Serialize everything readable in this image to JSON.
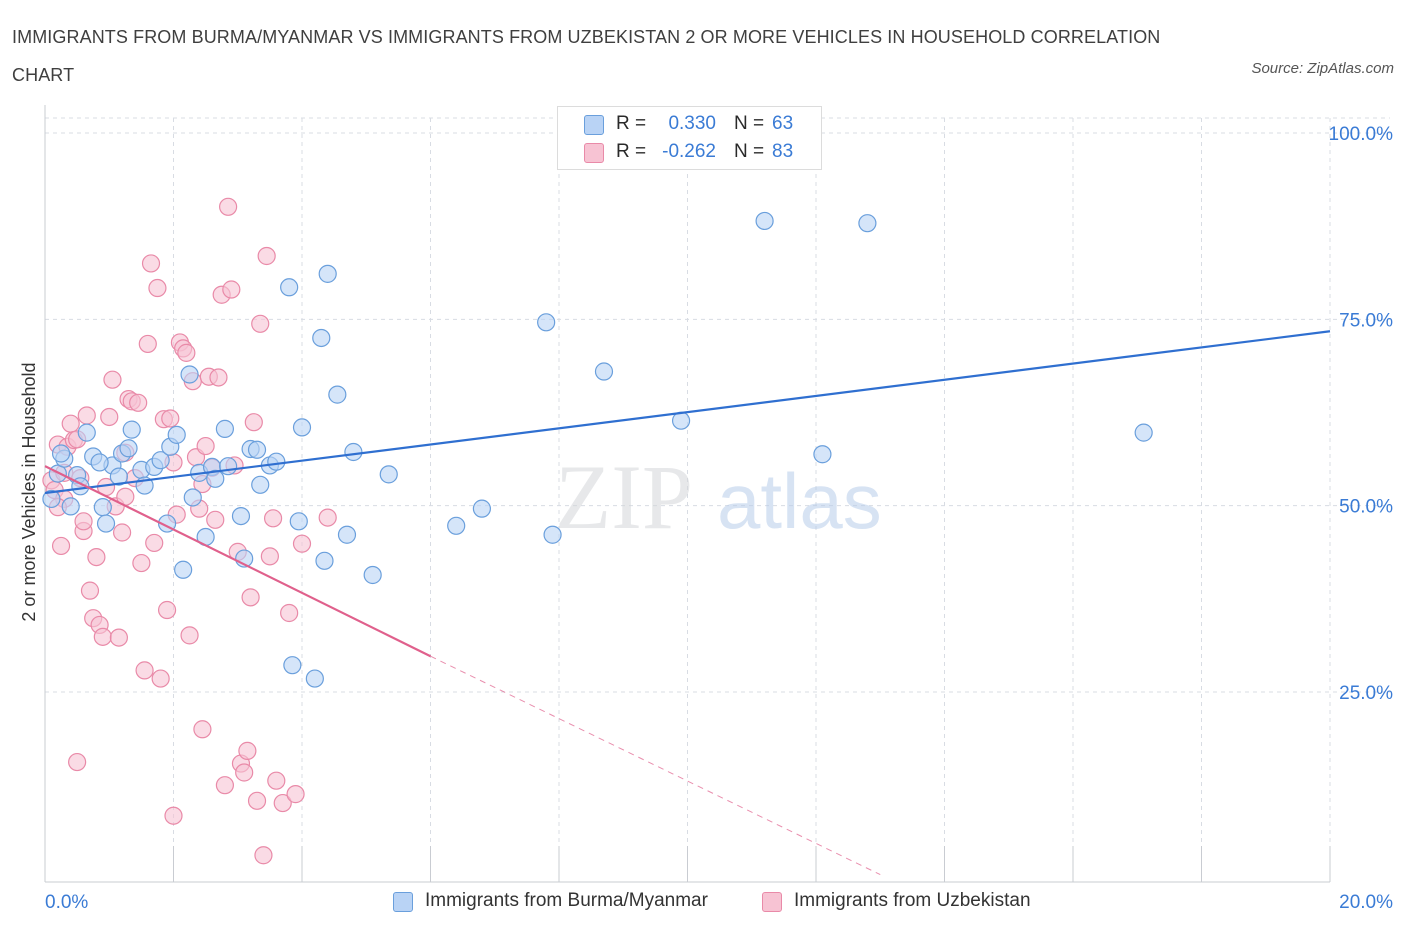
{
  "title": "IMMIGRANTS FROM BURMA/MYANMAR VS IMMIGRANTS FROM UZBEKISTAN 2 OR MORE VEHICLES IN HOUSEHOLD CORRELATION CHART",
  "source": "Source: ZipAtlas.com",
  "watermark": {
    "zip": "ZIP",
    "atlas": "atlas"
  },
  "legend": {
    "burma": {
      "r_label": "R =",
      "r_value": "0.330",
      "n_label": "N =",
      "n_value": "63"
    },
    "uzbek": {
      "r_label": "R =",
      "r_value": "-0.262",
      "n_label": "N =",
      "n_value": "83"
    }
  },
  "bottom_legend": {
    "burma": "Immigrants from Burma/Myanmar",
    "uzbek": "Immigrants from Uzbekistan"
  },
  "colors": {
    "burma_fill": "#b9d3f5",
    "burma_stroke": "#6a9fdc",
    "burma_line": "#2f6fd0",
    "uzbek_fill": "#f7c3d3",
    "uzbek_stroke": "#e98aa8",
    "uzbek_line": "#e0608c",
    "axis_text": "#3a7bd5",
    "grid": "#d8dce3"
  },
  "chart_data": {
    "type": "scatter",
    "xlabel": "",
    "ylabel": "2 or more Vehicles in Household",
    "x_unit": "%",
    "xlim": [
      0,
      20
    ],
    "ylim": [
      0,
      100
    ],
    "x_tick_labels": [
      {
        "value": 0,
        "label": "0.0%"
      },
      {
        "value": 20,
        "label": "20.0%"
      }
    ],
    "y_tick_labels": [
      {
        "value": 100,
        "label": "100.0%"
      },
      {
        "value": 75,
        "label": "75.0%"
      },
      {
        "value": 50,
        "label": "50.0%"
      },
      {
        "value": 25,
        "label": "25.0%"
      }
    ],
    "x_minor_ticks": [
      2,
      4,
      6,
      8,
      10,
      12,
      14,
      16,
      18,
      20
    ],
    "grid": true,
    "series": [
      {
        "name": "Immigrants from Burma/Myanmar",
        "points": [
          [
            0.1,
            50.9
          ],
          [
            0.2,
            54.3
          ],
          [
            0.3,
            56.3
          ],
          [
            0.4,
            49.9
          ],
          [
            0.5,
            54.1
          ],
          [
            0.65,
            59.8
          ],
          [
            0.75,
            56.6
          ],
          [
            0.9,
            49.8
          ],
          [
            0.95,
            47.6
          ],
          [
            1.05,
            55.4
          ],
          [
            1.15,
            53.9
          ],
          [
            1.2,
            57.0
          ],
          [
            1.3,
            57.7
          ],
          [
            1.35,
            60.2
          ],
          [
            1.5,
            54.8
          ],
          [
            1.55,
            52.7
          ],
          [
            1.7,
            55.2
          ],
          [
            1.8,
            56.1
          ],
          [
            1.9,
            47.6
          ],
          [
            1.95,
            57.9
          ],
          [
            2.05,
            59.5
          ],
          [
            2.15,
            41.4
          ],
          [
            2.25,
            67.6
          ],
          [
            2.3,
            51.1
          ],
          [
            2.4,
            54.4
          ],
          [
            2.5,
            45.8
          ],
          [
            2.6,
            55.2
          ],
          [
            2.65,
            53.6
          ],
          [
            2.8,
            60.3
          ],
          [
            2.85,
            55.3
          ],
          [
            3.05,
            48.6
          ],
          [
            3.1,
            42.9
          ],
          [
            3.2,
            57.6
          ],
          [
            3.3,
            57.5
          ],
          [
            3.35,
            52.8
          ],
          [
            3.5,
            55.4
          ],
          [
            3.6,
            55.9
          ],
          [
            3.8,
            79.3
          ],
          [
            3.85,
            28.6
          ],
          [
            3.95,
            47.9
          ],
          [
            4.0,
            60.5
          ],
          [
            4.2,
            26.8
          ],
          [
            4.3,
            72.5
          ],
          [
            4.35,
            42.6
          ],
          [
            4.4,
            81.1
          ],
          [
            4.55,
            64.9
          ],
          [
            4.7,
            46.1
          ],
          [
            4.8,
            57.2
          ],
          [
            5.1,
            40.7
          ],
          [
            5.35,
            54.2
          ],
          [
            6.4,
            47.3
          ],
          [
            6.8,
            49.6
          ],
          [
            7.8,
            74.6
          ],
          [
            7.9,
            46.1
          ],
          [
            8.7,
            68.0
          ],
          [
            9.9,
            61.4
          ],
          [
            11.2,
            88.2
          ],
          [
            12.1,
            56.9
          ],
          [
            12.8,
            87.9
          ],
          [
            17.1,
            59.8
          ],
          [
            0.25,
            57.0
          ],
          [
            0.55,
            52.6
          ],
          [
            0.85,
            55.8
          ]
        ]
      },
      {
        "name": "Immigrants from Uzbekistan",
        "points": [
          [
            0.1,
            53.4
          ],
          [
            0.15,
            52.1
          ],
          [
            0.2,
            58.2
          ],
          [
            0.25,
            44.6
          ],
          [
            0.3,
            50.9
          ],
          [
            0.35,
            57.9
          ],
          [
            0.4,
            61.0
          ],
          [
            0.45,
            58.8
          ],
          [
            0.5,
            15.6
          ],
          [
            0.55,
            53.7
          ],
          [
            0.6,
            46.6
          ],
          [
            0.65,
            62.1
          ],
          [
            0.7,
            38.6
          ],
          [
            0.75,
            34.9
          ],
          [
            0.8,
            43.1
          ],
          [
            0.85,
            34.0
          ],
          [
            0.9,
            32.4
          ],
          [
            1.0,
            61.9
          ],
          [
            1.05,
            66.9
          ],
          [
            1.1,
            49.9
          ],
          [
            1.15,
            32.3
          ],
          [
            1.2,
            46.4
          ],
          [
            1.25,
            57.1
          ],
          [
            1.3,
            64.3
          ],
          [
            1.35,
            64.0
          ],
          [
            1.4,
            53.7
          ],
          [
            1.45,
            63.8
          ],
          [
            1.5,
            42.3
          ],
          [
            1.55,
            27.9
          ],
          [
            1.6,
            71.7
          ],
          [
            1.65,
            82.5
          ],
          [
            1.7,
            45.0
          ],
          [
            1.75,
            79.2
          ],
          [
            1.8,
            26.8
          ],
          [
            1.85,
            61.6
          ],
          [
            1.9,
            36.0
          ],
          [
            1.95,
            61.7
          ],
          [
            2.0,
            8.4
          ],
          [
            2.05,
            48.8
          ],
          [
            2.1,
            71.9
          ],
          [
            2.15,
            71.1
          ],
          [
            2.2,
            70.5
          ],
          [
            2.25,
            32.6
          ],
          [
            2.3,
            66.7
          ],
          [
            2.35,
            56.5
          ],
          [
            2.4,
            49.6
          ],
          [
            2.45,
            20.0
          ],
          [
            2.5,
            58.0
          ],
          [
            2.55,
            67.3
          ],
          [
            2.6,
            55.1
          ],
          [
            2.65,
            48.1
          ],
          [
            2.7,
            67.2
          ],
          [
            2.75,
            78.3
          ],
          [
            2.8,
            12.5
          ],
          [
            2.85,
            90.1
          ],
          [
            2.9,
            79.0
          ],
          [
            2.95,
            55.4
          ],
          [
            3.0,
            43.8
          ],
          [
            3.05,
            15.4
          ],
          [
            3.1,
            14.2
          ],
          [
            3.15,
            17.1
          ],
          [
            3.2,
            37.7
          ],
          [
            3.25,
            61.2
          ],
          [
            3.3,
            10.4
          ],
          [
            3.35,
            74.4
          ],
          [
            3.4,
            3.1
          ],
          [
            3.45,
            83.5
          ],
          [
            3.5,
            43.2
          ],
          [
            3.55,
            48.3
          ],
          [
            3.6,
            13.1
          ],
          [
            3.7,
            10.1
          ],
          [
            3.8,
            35.6
          ],
          [
            3.9,
            11.3
          ],
          [
            4.0,
            44.9
          ],
          [
            4.4,
            48.4
          ],
          [
            0.3,
            54.4
          ],
          [
            0.5,
            58.9
          ],
          [
            0.2,
            49.8
          ],
          [
            0.6,
            47.9
          ],
          [
            0.95,
            52.5
          ],
          [
            1.25,
            51.2
          ],
          [
            2.0,
            55.8
          ],
          [
            2.45,
            52.9
          ]
        ]
      }
    ],
    "trend_lines": [
      {
        "name": "Immigrants from Burma/Myanmar",
        "x": [
          0,
          20
        ],
        "y": [
          51.7,
          73.4
        ]
      },
      {
        "name": "Immigrants from Uzbekistan",
        "x": [
          0,
          6.0
        ],
        "y": [
          55.3,
          29.8
        ],
        "dashed_extension": {
          "x": [
            6.0,
            13.0
          ],
          "y": [
            29.8,
            0.5
          ]
        }
      }
    ]
  }
}
